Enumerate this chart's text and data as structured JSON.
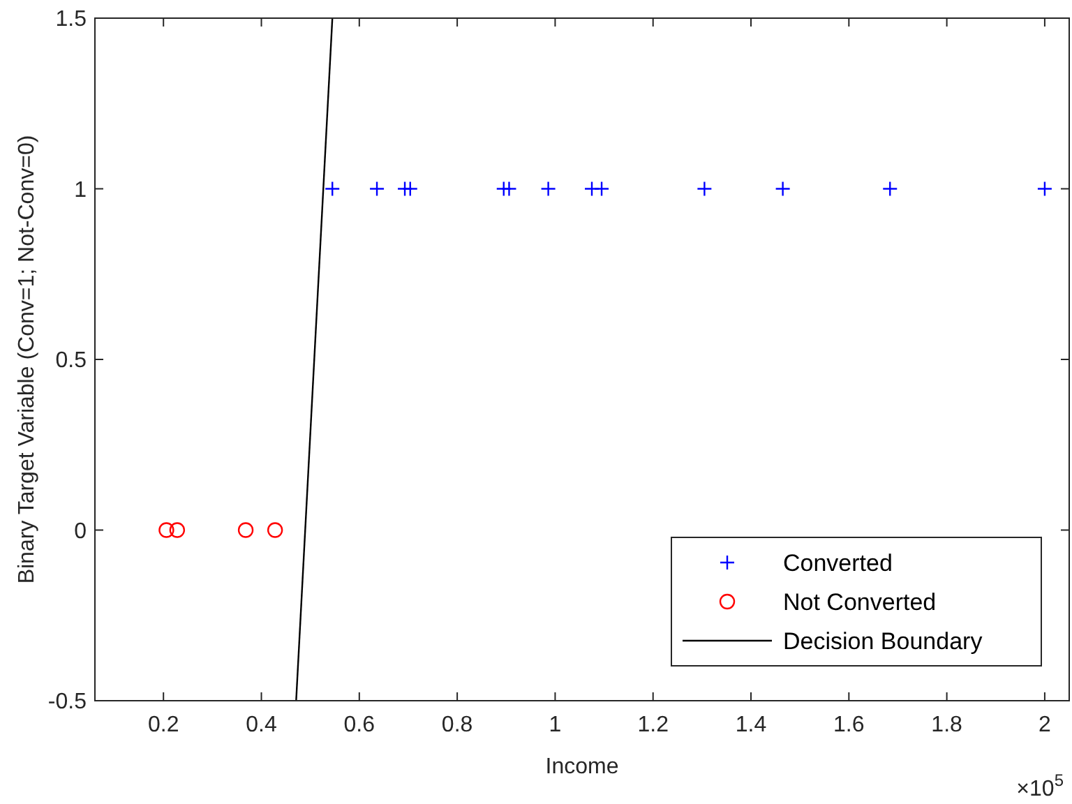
{
  "chart_data": {
    "type": "scatter",
    "xlabel": "Income",
    "ylabel": "Binary Target Variable (Conv=1; Not-Conv=0)",
    "xlim": [
      0.06,
      2.05
    ],
    "xticks": [
      0.2,
      0.4,
      0.6,
      0.8,
      1,
      1.2,
      1.4,
      1.6,
      1.8,
      2
    ],
    "ylim": [
      -0.5,
      1.5
    ],
    "yticks": [
      -0.5,
      0,
      0.5,
      1,
      1.5
    ],
    "grid": false,
    "legend": "bottom right",
    "annotations": [
      "×10$^{5}$"
    ],
    "series": [
      {
        "name": "Converted",
        "color": "#0000ff",
        "marker": "cross",
        "x": [
          0.545,
          0.636,
          0.693,
          0.704,
          0.895,
          0.906,
          0.986,
          1.075,
          1.095,
          1.305,
          1.465,
          1.684,
          2.0
        ],
        "values": [
          1,
          1,
          1,
          1,
          1,
          1,
          1,
          1,
          1,
          1,
          1,
          1,
          1
        ]
      },
      {
        "name": "Not Converted",
        "color": "#ff0000",
        "marker": "circle",
        "x": [
          0.206,
          0.228,
          0.368,
          0.428
        ],
        "values": [
          0,
          0,
          0,
          0
        ]
      },
      {
        "name": "Decision Boundary",
        "type": "line",
        "color": "#000000",
        "marker": "none",
        "line_style": "solid",
        "x": [
          0.471,
          0.545
        ],
        "values": [
          -0.5,
          1.5
        ]
      }
    ]
  }
}
